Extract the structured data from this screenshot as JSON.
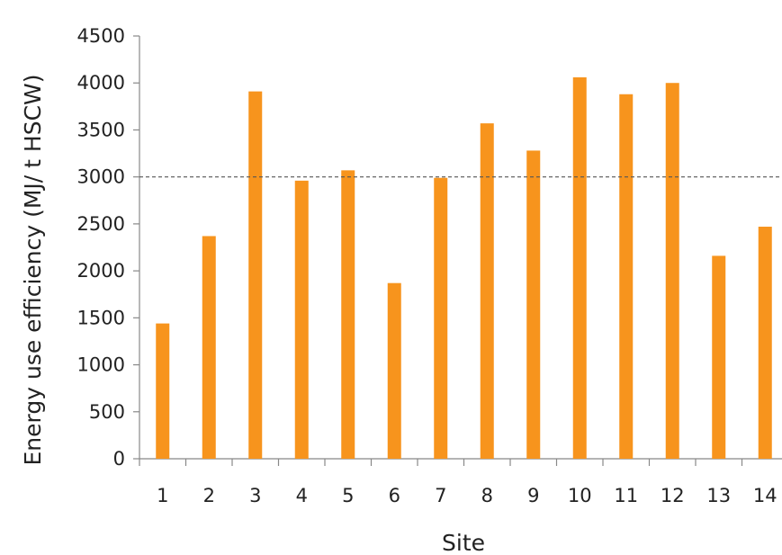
{
  "chart_data": {
    "type": "bar",
    "title": "",
    "xlabel": "Site",
    "ylabel": "Energy use efficiency  (MJ/ t HSCW)",
    "categories": [
      "1",
      "2",
      "3",
      "4",
      "5",
      "6",
      "7",
      "8",
      "9",
      "10",
      "11",
      "12",
      "13",
      "14"
    ],
    "values": [
      1440,
      2370,
      3910,
      2960,
      3070,
      1870,
      2990,
      3570,
      3280,
      4060,
      3880,
      4000,
      2160,
      2470
    ],
    "ylim": [
      0,
      4500
    ],
    "yticks": [
      "0",
      "500",
      "1000",
      "1500",
      "2000",
      "2500",
      "3000",
      "3500",
      "4000",
      "4500"
    ],
    "reference_line": 3000,
    "bar_color": "#F7941D",
    "reference_line_color": "#555555",
    "grid": false,
    "legend": "none"
  }
}
